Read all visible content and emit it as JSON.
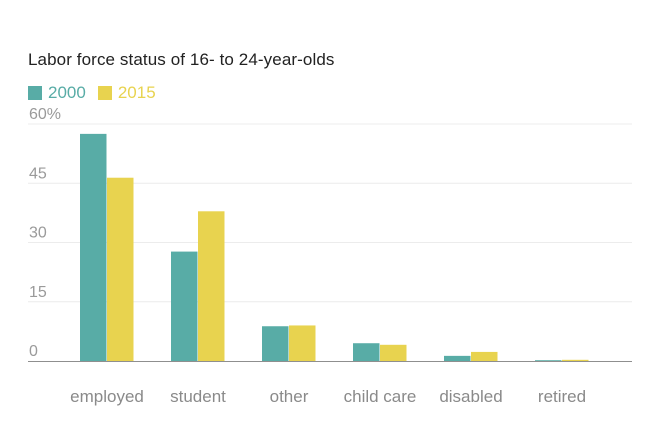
{
  "chart_data": {
    "type": "bar",
    "title": "Labor force status of 16- to 24-year-olds",
    "categories": [
      "employed",
      "student",
      "other",
      "child care",
      "disabled",
      "retired"
    ],
    "series": [
      {
        "name": "2000",
        "values": [
          57.5,
          27.7,
          8.8,
          4.5,
          1.3,
          0.2
        ]
      },
      {
        "name": "2015",
        "values": [
          46.4,
          37.9,
          9.0,
          4.1,
          2.3,
          0.3
        ]
      }
    ],
    "colors": [
      "#58aca6",
      "#e8d34f"
    ],
    "yticks": [
      "0",
      "15",
      "30",
      "45",
      "60%"
    ],
    "ytick_values": [
      0,
      15,
      30,
      45,
      60
    ],
    "ylim": [
      0,
      60
    ],
    "xlabel": "",
    "ylabel": "",
    "legend_position": "top-left",
    "grid": true
  }
}
